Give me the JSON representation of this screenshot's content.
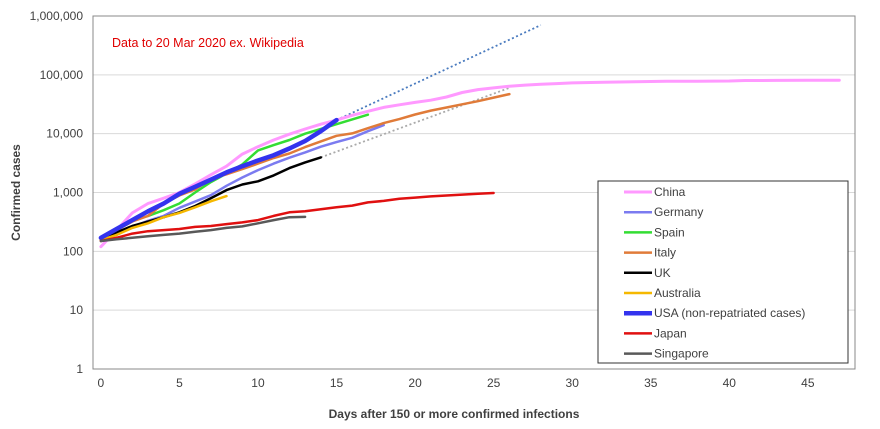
{
  "chart_data": {
    "type": "line",
    "title": "",
    "annotation": "Data to 20 Mar 2020  ex. Wikipedia",
    "xlabel": "Days after 150  or more confirmed infections",
    "ylabel": "Confirmed cases",
    "y_scale": "log",
    "xlim": [
      -0.5,
      48
    ],
    "ylim": [
      1,
      1000000
    ],
    "x_ticks": [
      0,
      5,
      10,
      15,
      20,
      25,
      30,
      35,
      40,
      45
    ],
    "y_ticks": [
      1,
      10,
      100,
      1000,
      10000,
      100000,
      1000000
    ],
    "y_tick_labels": [
      "1",
      "10",
      "100",
      "1,000",
      "10,000",
      "100,000",
      "1,000,000"
    ],
    "grid": "horizontal",
    "legend_position": "right",
    "series": [
      {
        "name": "China",
        "color": "#ff99ff",
        "width": 3,
        "x": [
          0,
          1,
          2,
          3,
          4,
          5,
          6,
          7,
          8,
          9,
          10,
          11,
          12,
          13,
          14,
          15,
          16,
          17,
          18,
          19,
          20,
          21,
          22,
          23,
          24,
          25,
          26,
          27,
          28,
          29,
          30,
          32,
          34,
          36,
          38,
          40,
          41,
          43,
          45,
          47
        ],
        "y": [
          120,
          230,
          450,
          650,
          800,
          1000,
          1400,
          2000,
          2800,
          4500,
          6000,
          7800,
          9800,
          12000,
          14500,
          17000,
          20500,
          24000,
          28000,
          31000,
          34000,
          37000,
          42000,
          50000,
          56000,
          60000,
          64000,
          67000,
          69000,
          71000,
          73000,
          75000,
          76500,
          77500,
          78000,
          78500,
          80000,
          80500,
          80700,
          80800
        ]
      },
      {
        "name": "Germany",
        "color": "#7b7bf0",
        "width": 2.5,
        "x": [
          0,
          1,
          2,
          3,
          4,
          5,
          6,
          7,
          8,
          9,
          10,
          11,
          12,
          13,
          14,
          15,
          16,
          17,
          18
        ],
        "y": [
          150,
          190,
          260,
          330,
          400,
          550,
          700,
          900,
          1300,
          1800,
          2400,
          3100,
          3900,
          4800,
          6000,
          7200,
          8500,
          11000,
          14000
        ]
      },
      {
        "name": "Spain",
        "color": "#33dd33",
        "width": 2.5,
        "x": [
          3,
          4,
          5,
          6,
          7,
          8,
          9,
          10,
          11,
          12,
          13,
          14,
          15,
          16,
          17
        ],
        "y": [
          400,
          500,
          650,
          1000,
          1500,
          2100,
          3000,
          5200,
          6400,
          7800,
          10000,
          12000,
          14500,
          17500,
          21000
        ]
      },
      {
        "name": "Italy",
        "color": "#e07b39",
        "width": 2.5,
        "x": [
          0,
          1,
          2,
          3,
          4,
          5,
          6,
          7,
          8,
          9,
          10,
          11,
          12,
          13,
          14,
          15,
          16,
          17,
          18,
          19,
          20,
          21,
          22,
          23,
          24,
          25,
          26
        ],
        "y": [
          155,
          229,
          322,
          400,
          650,
          890,
          1130,
          1700,
          2040,
          2500,
          3100,
          3860,
          4600,
          5900,
          7400,
          9200,
          10100,
          12400,
          15100,
          17700,
          21200,
          24700,
          27900,
          31500,
          35700,
          41000,
          47000
        ]
      },
      {
        "name": "UK",
        "color": "#000000",
        "width": 2.5,
        "x": [
          0,
          1,
          2,
          3,
          4,
          5,
          6,
          7,
          8,
          9,
          10,
          11,
          12,
          13,
          14
        ],
        "y": [
          160,
          210,
          270,
          320,
          380,
          460,
          590,
          800,
          1100,
          1370,
          1550,
          1950,
          2600,
          3250,
          3950
        ]
      },
      {
        "name": "Australia",
        "color": "#f5b800",
        "width": 2.5,
        "x": [
          0,
          1,
          2,
          3,
          4,
          5,
          6,
          7,
          8
        ],
        "y": [
          155,
          190,
          250,
          300,
          380,
          450,
          560,
          710,
          870
        ]
      },
      {
        "name": "USA (non-repatriated cases)",
        "color": "#3333ee",
        "width": 4.5,
        "x": [
          0,
          1,
          2,
          3,
          4,
          5,
          6,
          7,
          8,
          9,
          10,
          11,
          12,
          13,
          14,
          15
        ],
        "y": [
          170,
          240,
          340,
          480,
          650,
          950,
          1250,
          1650,
          2200,
          2800,
          3500,
          4300,
          5600,
          7500,
          11000,
          17000
        ]
      },
      {
        "name": "Japan",
        "color": "#e01010",
        "width": 2.5,
        "x": [
          0,
          1,
          2,
          3,
          4,
          5,
          6,
          7,
          8,
          9,
          10,
          11,
          12,
          13,
          14,
          15,
          16,
          17,
          18,
          19,
          20,
          21,
          22,
          23,
          24,
          25
        ],
        "y": [
          150,
          170,
          200,
          220,
          230,
          240,
          260,
          270,
          290,
          310,
          340,
          400,
          460,
          480,
          520,
          560,
          600,
          680,
          720,
          780,
          820,
          860,
          890,
          920,
          950,
          980
        ]
      },
      {
        "name": "Singapore",
        "color": "#595959",
        "width": 2.5,
        "x": [
          0,
          1,
          2,
          3,
          4,
          5,
          6,
          7,
          8,
          9,
          10,
          11,
          12,
          13
        ],
        "y": [
          150,
          160,
          170,
          180,
          190,
          200,
          215,
          230,
          250,
          265,
          300,
          340,
          380,
          385
        ]
      }
    ],
    "trend_lines": [
      {
        "color": "#4a7bbf",
        "x": [
          15,
          28
        ],
        "y": [
          17000,
          700000
        ]
      },
      {
        "color": "#aaaaaa",
        "x": [
          14,
          26
        ],
        "y": [
          3950,
          60000
        ]
      }
    ]
  }
}
